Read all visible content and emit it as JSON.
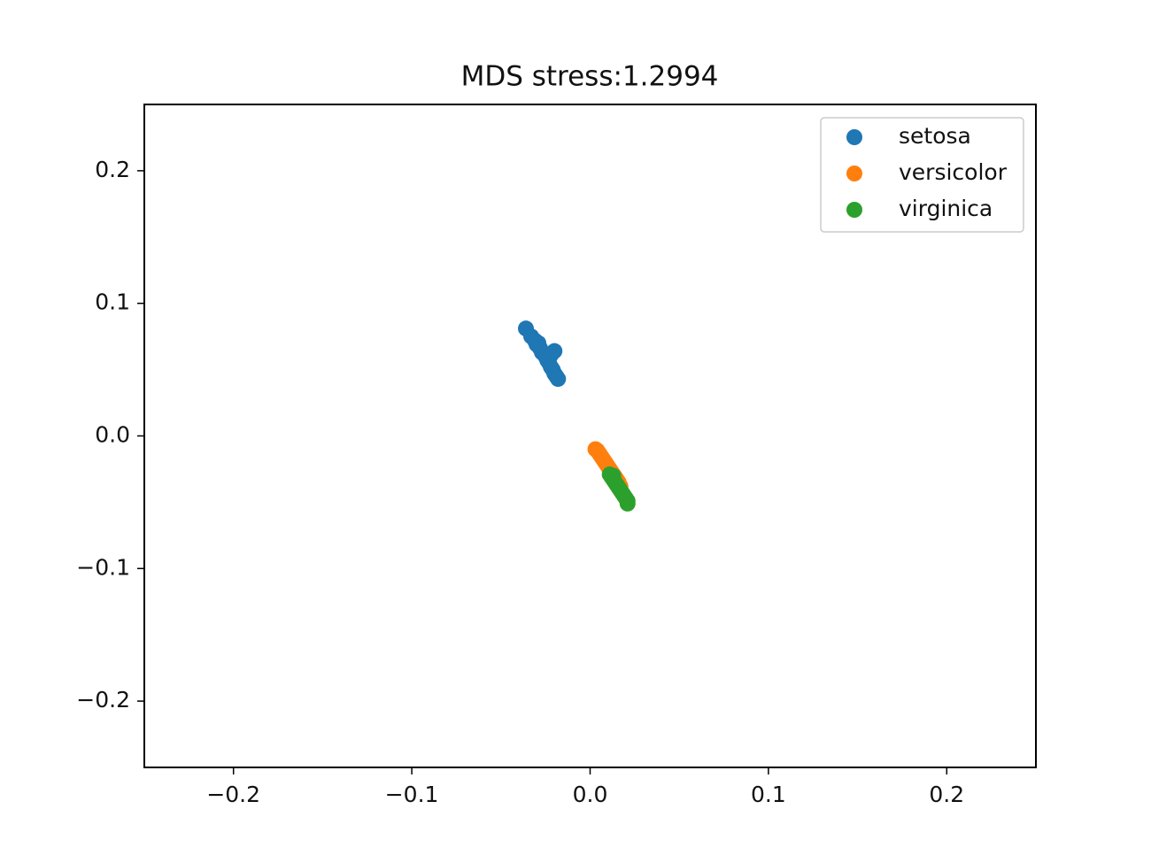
{
  "chart_data": {
    "type": "scatter",
    "title": "MDS stress:1.2994",
    "xlim": [
      -0.25,
      0.25
    ],
    "ylim": [
      -0.25,
      0.25
    ],
    "xticks": [
      {
        "value": -0.2,
        "label": "−0.2"
      },
      {
        "value": -0.1,
        "label": "−0.1"
      },
      {
        "value": 0,
        "label": "0.0"
      },
      0.1,
      0.2
    ],
    "yticks": [
      {
        "value": -0.2,
        "label": "−0.2"
      },
      {
        "value": -0.1,
        "label": "−0.1"
      },
      {
        "value": 0,
        "label": "0.0"
      },
      0.1,
      0.2
    ],
    "legend": "upper right",
    "grid": false,
    "series": [
      {
        "name": "setosa",
        "color": "#1f77b4",
        "x": [
          -0.036,
          -0.033,
          -0.031,
          -0.03,
          -0.029,
          -0.028,
          -0.027,
          -0.026,
          -0.025,
          -0.024,
          -0.023,
          -0.022,
          -0.021,
          -0.02,
          -0.019,
          -0.018,
          -0.02,
          -0.022
        ],
        "y": [
          0.081,
          0.075,
          0.072,
          0.069,
          0.07,
          0.066,
          0.063,
          0.062,
          0.06,
          0.057,
          0.055,
          0.052,
          0.05,
          0.047,
          0.045,
          0.043,
          0.064,
          0.061
        ]
      },
      {
        "name": "versicolor",
        "color": "#ff7f0e",
        "x": [
          0.003,
          0.004,
          0.005,
          0.006,
          0.007,
          0.008,
          0.009,
          0.01,
          0.011,
          0.012,
          0.013,
          0.014,
          0.015,
          0.016,
          0.017
        ],
        "y": [
          -0.01,
          -0.011,
          -0.013,
          -0.015,
          -0.017,
          -0.019,
          -0.021,
          -0.023,
          -0.025,
          -0.027,
          -0.029,
          -0.031,
          -0.033,
          -0.035,
          -0.038
        ]
      },
      {
        "name": "virginica",
        "color": "#2ca02c",
        "x": [
          0.011,
          0.012,
          0.013,
          0.014,
          0.015,
          0.016,
          0.017,
          0.018,
          0.019,
          0.02,
          0.021,
          0.021,
          0.013
        ],
        "y": [
          -0.029,
          -0.031,
          -0.033,
          -0.035,
          -0.037,
          -0.039,
          -0.041,
          -0.043,
          -0.045,
          -0.047,
          -0.049,
          -0.051,
          -0.03
        ]
      }
    ]
  }
}
